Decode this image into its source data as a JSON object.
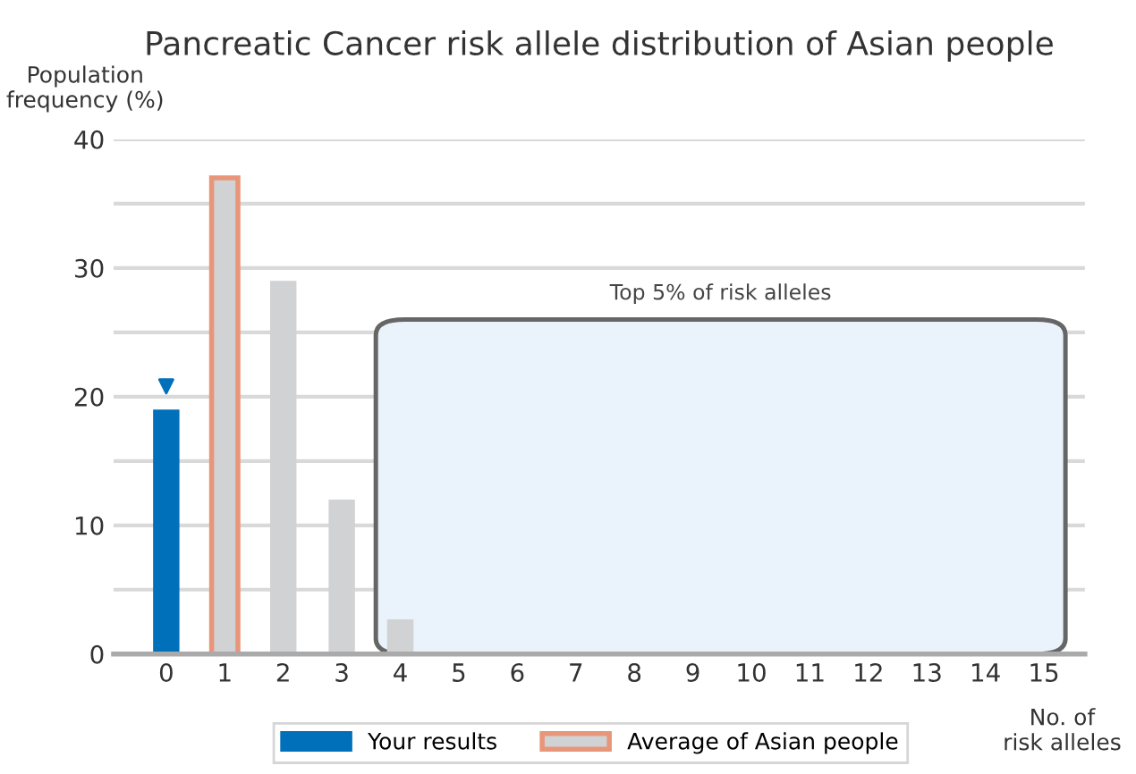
{
  "chart_data": {
    "type": "bar",
    "title": "Pancreatic Cancer risk allele distribution of Asian people",
    "xlabel": "No. of\nrisk alleles",
    "ylabel": "Population\nfrequency (%)",
    "categories": [
      "0",
      "1",
      "2",
      "3",
      "4",
      "5",
      "6",
      "7",
      "8",
      "9",
      "10",
      "11",
      "12",
      "13",
      "14",
      "15"
    ],
    "series": [
      {
        "name": "Your results",
        "color": "#0070bb",
        "values": [
          19,
          null,
          null,
          null,
          null,
          null,
          null,
          null,
          null,
          null,
          null,
          null,
          null,
          null,
          null,
          null
        ]
      },
      {
        "name": "Average of Asian people",
        "color": "#d1d2d4",
        "values": [
          null,
          37,
          null,
          null,
          null,
          null,
          null,
          null,
          null,
          null,
          null,
          null,
          null,
          null,
          null,
          null
        ]
      },
      {
        "color": "#d1d2d4",
        "values": [
          null,
          null,
          29,
          12,
          2.7,
          0,
          0,
          0,
          0,
          0,
          0,
          0,
          0,
          0,
          0,
          0
        ]
      },
      {
        "type": "scatter",
        "color": "#0070bb",
        "marker": "triangle",
        "x": [
          "0"
        ],
        "values": [
          20.8
        ]
      }
    ],
    "ylim": [
      0,
      40
    ],
    "yticks": [
      0,
      {
        "value": 5,
        "label": null
      },
      10,
      {
        "value": 15,
        "label": null
      },
      20,
      {
        "value": 25,
        "label": null
      },
      30,
      {
        "value": 35,
        "label": null
      },
      40
    ],
    "annotations": [
      "Top 5% of risk alleles"
    ],
    "grid": "y",
    "legend": "bottom"
  }
}
